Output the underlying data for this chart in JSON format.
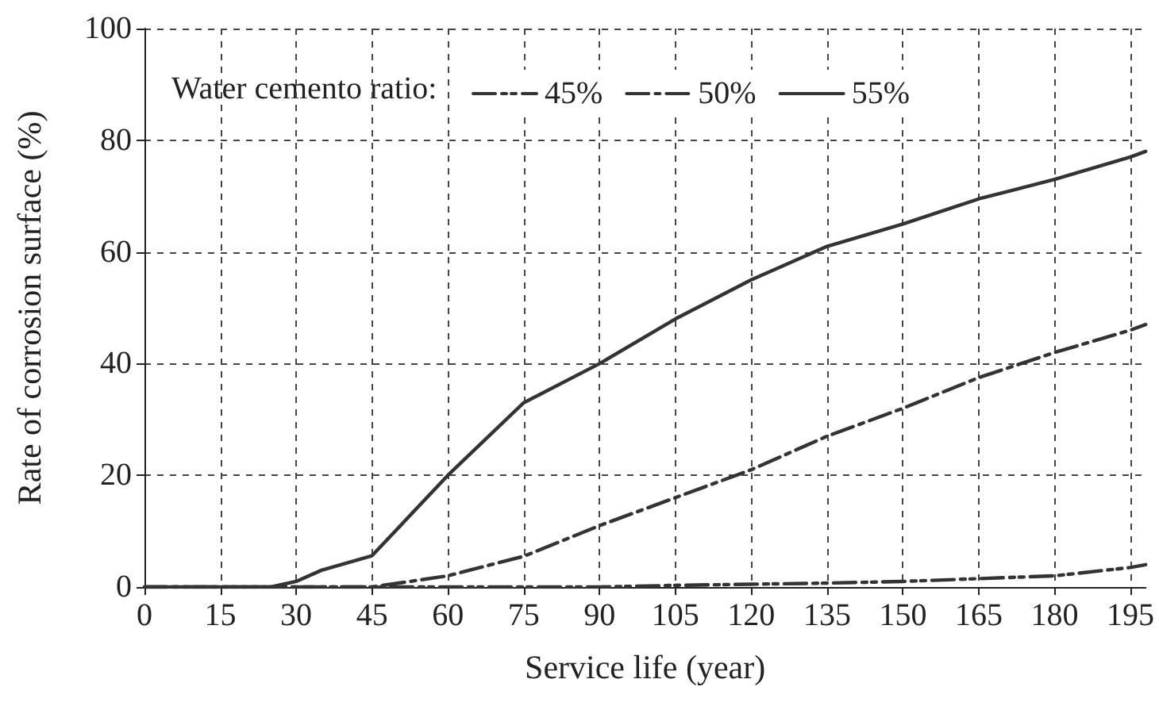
{
  "chart_data": {
    "type": "line",
    "xlabel": "Service life (year)",
    "ylabel": "Rate of corrosion surface (%)",
    "legend_title": "Water cemento ratio:",
    "x": [
      0,
      15,
      25,
      30,
      35,
      45,
      60,
      75,
      90,
      105,
      120,
      135,
      150,
      165,
      180,
      195,
      198
    ],
    "series": [
      {
        "name": "45%",
        "color": "#333333",
        "line_style": "dashdotdot",
        "values": [
          0,
          0,
          0,
          0,
          0,
          0,
          0,
          0,
          0,
          0.3,
          0.5,
          0.7,
          1,
          1.5,
          2,
          3.5,
          4
        ]
      },
      {
        "name": "50%",
        "color": "#333333",
        "line_style": "dashdot",
        "values": [
          0,
          0,
          0,
          0,
          0,
          0,
          2,
          5.5,
          11,
          16,
          21,
          27,
          32,
          37.5,
          42,
          46,
          47
        ]
      },
      {
        "name": "55%",
        "color": "#333333",
        "line_style": "solid",
        "values": [
          0,
          0,
          0,
          1,
          3,
          5.6,
          20,
          33,
          40,
          48,
          55,
          61,
          65,
          69.5,
          73,
          77,
          78
        ]
      }
    ],
    "xlim": [
      0,
      198
    ],
    "xticks": [
      0,
      15,
      30,
      45,
      60,
      75,
      90,
      105,
      120,
      135,
      150,
      165,
      180,
      195
    ],
    "ylim": [
      0,
      100
    ],
    "yticks": [
      0,
      20,
      40,
      60,
      80,
      100
    ],
    "grid": true,
    "legend": "top",
    "marker": "none"
  }
}
